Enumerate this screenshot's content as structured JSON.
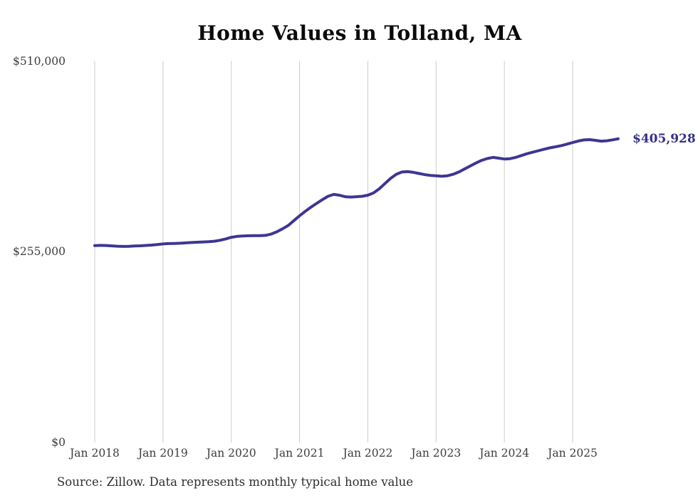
{
  "chart": {
    "title": "Home Values in Tolland, MA",
    "source": "Source: Zillow. Data represents monthly typical home value",
    "end_label": "$405,928"
  },
  "chart_data": {
    "type": "line",
    "title": "Home Values in Tolland, MA",
    "series_name": "Monthly typical home value (ZHVI)",
    "x_start": "Jan 2018",
    "x_end": "Sep 2025",
    "x_tick_labels": [
      "Jan 2018",
      "Jan 2019",
      "Jan 2020",
      "Jan 2021",
      "Jan 2022",
      "Jan 2023",
      "Jan 2024",
      "Jan 2025"
    ],
    "y_ticks": [
      {
        "label": "$0",
        "value": 0
      },
      {
        "label": "$255,000",
        "value": 255000
      },
      {
        "label": "$510,000",
        "value": 510000
      }
    ],
    "ylim": [
      0,
      510000
    ],
    "grid": "vertical-only",
    "legend": "none",
    "latest_value": 405928,
    "latest_value_label": "$405,928",
    "values_monthly": [
      263000,
      263400,
      263200,
      262800,
      262300,
      262000,
      262200,
      262600,
      262900,
      263300,
      263800,
      264600,
      265300,
      265800,
      266000,
      266300,
      266800,
      267200,
      267600,
      268000,
      268400,
      269000,
      270200,
      272000,
      274200,
      275400,
      276000,
      276300,
      276400,
      276400,
      276800,
      278500,
      281500,
      285500,
      290000,
      296500,
      303000,
      309000,
      314500,
      319500,
      324500,
      329000,
      331500,
      330500,
      328500,
      328000,
      328500,
      329000,
      330500,
      333500,
      339000,
      346000,
      353000,
      358500,
      361500,
      362000,
      361000,
      359500,
      358000,
      357000,
      356500,
      355800,
      356500,
      358500,
      361500,
      365500,
      369500,
      373500,
      377000,
      379500,
      381000,
      380000,
      378900,
      379300,
      381000,
      383500,
      386000,
      388000,
      390000,
      392000,
      393800,
      395200,
      396800,
      398800,
      400900,
      403000,
      404400,
      404800,
      403800,
      402800,
      403200,
      404500,
      405928
    ],
    "colors": {
      "line": "#3d3693",
      "end_label": "#363085",
      "gridline": "#cccccc",
      "tick_text": "#3d3d3d",
      "title_text": "#0a0a0a",
      "source_text": "#2e2e2e",
      "background": "#ffffff"
    }
  }
}
